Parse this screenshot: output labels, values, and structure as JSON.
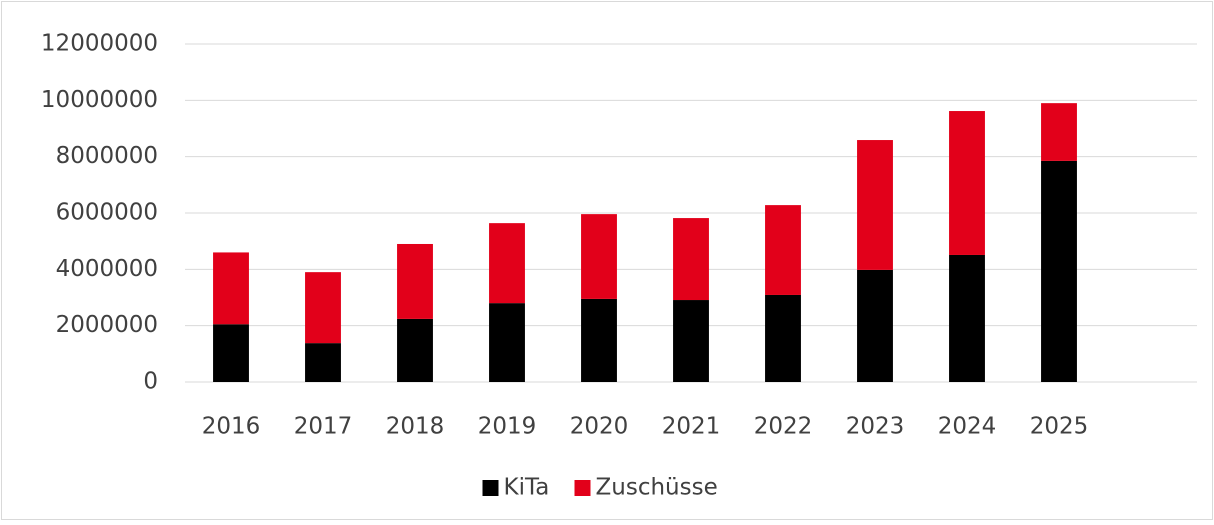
{
  "chart_data": {
    "type": "stacked_bar",
    "categories": [
      "2016",
      "2017",
      "2018",
      "2019",
      "2020",
      "2021",
      "2022",
      "2023",
      "2024",
      "2025",
      null
    ],
    "series": [
      {
        "name": "KiTa",
        "color": "#000000",
        "values": [
          2050000,
          1380000,
          2240000,
          2800000,
          2950000,
          2910000,
          3090000,
          3980000,
          4510000,
          7850000,
          null
        ]
      },
      {
        "name": "Zuschüsse",
        "color": "#e2001a",
        "values": [
          2550000,
          2520000,
          2660000,
          2840000,
          3010000,
          2910000,
          3190000,
          4610000,
          5110000,
          2050000,
          null
        ]
      }
    ],
    "ylim": [
      0,
      12000000
    ],
    "yticks": [
      0,
      2000000,
      4000000,
      6000000,
      8000000,
      10000000,
      12000000
    ],
    "grid": true,
    "legend": "bottom"
  }
}
